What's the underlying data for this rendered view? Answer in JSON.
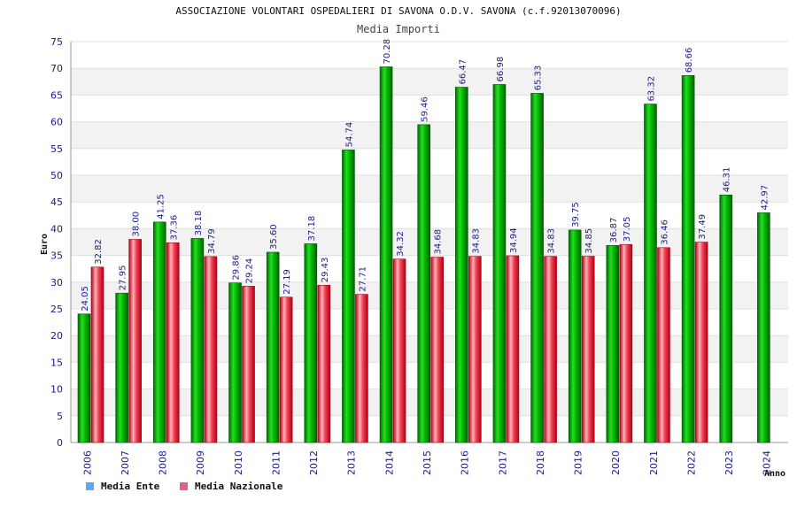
{
  "chart_data": {
    "type": "bar",
    "title": "ASSOCIAZIONE VOLONTARI OSPEDALIERI DI SAVONA O.D.V. SAVONA (c.f.92013070096)",
    "subtitle": "Media Importi",
    "xlabel": "Anno",
    "ylabel": "Euro",
    "ylim": [
      0,
      75
    ],
    "yticks": [
      0,
      5,
      10,
      15,
      20,
      25,
      30,
      35,
      40,
      45,
      50,
      55,
      60,
      65,
      70,
      75
    ],
    "grid": true,
    "legend_position": "bottom-left",
    "categories": [
      "2006",
      "2007",
      "2008",
      "2009",
      "2010",
      "2011",
      "2012",
      "2013",
      "2014",
      "2015",
      "2016",
      "2017",
      "2018",
      "2019",
      "2020",
      "2021",
      "2022",
      "2023",
      "2024"
    ],
    "series": [
      {
        "name": "Media Ente",
        "color": "#00a000",
        "legend_color": "#5aa9ee",
        "values": [
          24.05,
          27.95,
          41.25,
          38.18,
          29.86,
          35.6,
          37.18,
          54.74,
          70.28,
          59.46,
          66.47,
          66.98,
          65.33,
          39.75,
          36.87,
          63.32,
          68.66,
          46.31,
          42.97
        ],
        "labels": [
          "24.05",
          "27.95",
          "41.25",
          "38.18",
          "29.86",
          "35.60",
          "37.18",
          "54.74",
          "70.28",
          "59.46",
          "66.47",
          "66.98",
          "65.33",
          "39.75",
          "36.87",
          "63.32",
          "68.66",
          "46.31",
          "42.97"
        ]
      },
      {
        "name": "Media Nazionale",
        "color": "#e02030",
        "legend_color": "#e06090",
        "values": [
          32.82,
          38.0,
          37.36,
          34.79,
          29.24,
          27.19,
          29.43,
          27.71,
          34.32,
          34.68,
          34.83,
          34.94,
          34.83,
          34.85,
          37.05,
          36.46,
          37.49,
          null,
          null
        ],
        "labels": [
          "32.82",
          "38.00",
          "37.36",
          "34.79",
          "29.24",
          "27.19",
          "29.43",
          "27.71",
          "34.32",
          "34.68",
          "34.83",
          "34.94",
          "34.83",
          "34.85",
          "37.05",
          "36.46",
          "37.49",
          null,
          null
        ]
      }
    ]
  }
}
